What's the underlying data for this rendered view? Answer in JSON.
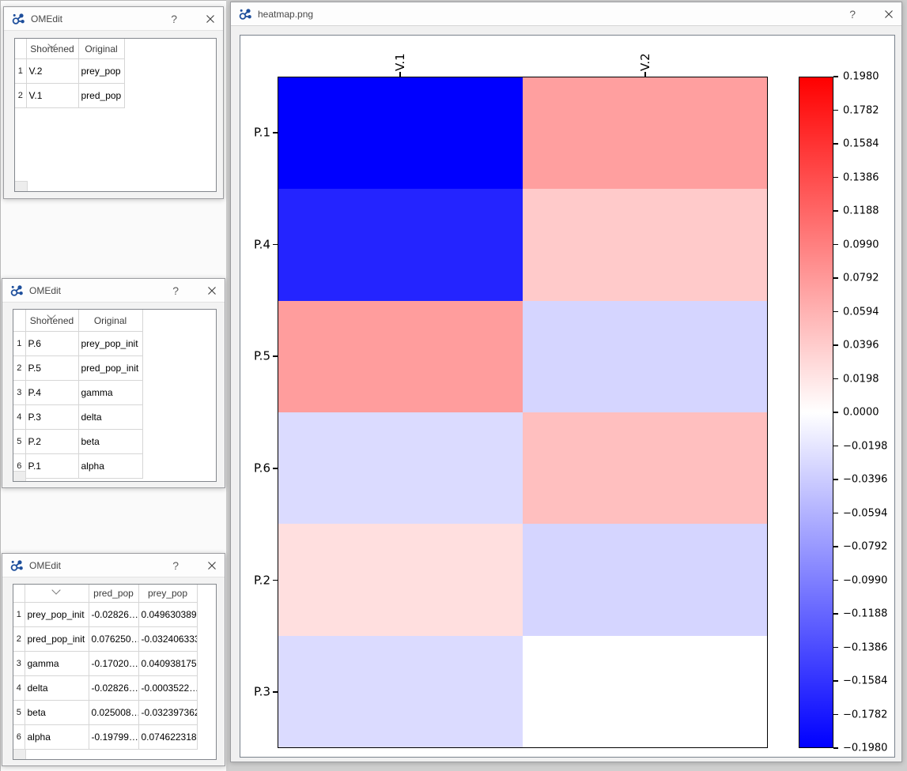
{
  "colors": {
    "heatmap_max_red": "#ff0000",
    "heatmap_min_blue": "#0000ff",
    "logo_blue": "#1e4f9c",
    "window_titlebar_bg": "#fdfdfd",
    "window_body_bg": "#f0f0f0"
  },
  "icons": {
    "omedit-logo-icon": "molecule-glyph",
    "help-icon": "?",
    "close-icon": "x-cross",
    "sort-indicator-icon": "chevron-down"
  },
  "windows": [
    {
      "title": "OMEdit",
      "help_label": "?",
      "table": {
        "columns": [
          "Shortened",
          "Original"
        ],
        "rows": [
          {
            "num": "1",
            "cells": [
              "V.2",
              "prey_pop"
            ]
          },
          {
            "num": "2",
            "cells": [
              "V.1",
              "pred_pop"
            ]
          }
        ]
      }
    },
    {
      "title": "OMEdit",
      "help_label": "?",
      "table": {
        "columns": [
          "Shortened",
          "Original"
        ],
        "rows": [
          {
            "num": "1",
            "cells": [
              "P.6",
              "prey_pop_init"
            ]
          },
          {
            "num": "2",
            "cells": [
              "P.5",
              "pred_pop_init"
            ]
          },
          {
            "num": "3",
            "cells": [
              "P.4",
              "gamma"
            ]
          },
          {
            "num": "4",
            "cells": [
              "P.3",
              "delta"
            ]
          },
          {
            "num": "5",
            "cells": [
              "P.2",
              "beta"
            ]
          },
          {
            "num": "6",
            "cells": [
              "P.1",
              "alpha"
            ]
          }
        ]
      }
    },
    {
      "title": "OMEdit",
      "help_label": "?",
      "table": {
        "columns": [
          "",
          "pred_pop",
          "prey_pop"
        ],
        "rows": [
          {
            "num": "1",
            "cells": [
              "prey_pop_init",
              "-0.02826…",
              "0.049630389"
            ]
          },
          {
            "num": "2",
            "cells": [
              "pred_pop_init",
              "0.076250…",
              "-0.032406333"
            ]
          },
          {
            "num": "3",
            "cells": [
              "gamma",
              "-0.17020…",
              "0.040938175"
            ]
          },
          {
            "num": "4",
            "cells": [
              "delta",
              "-0.02826…",
              "-0.0003522…"
            ]
          },
          {
            "num": "5",
            "cells": [
              "beta",
              "0.025008…",
              "-0.032397362"
            ]
          },
          {
            "num": "6",
            "cells": [
              "alpha",
              "-0.19799…",
              "0.074622318"
            ]
          }
        ]
      }
    }
  ],
  "heatmap_window": {
    "title": "heatmap.png",
    "help_label": "?"
  },
  "chart_data": {
    "type": "heatmap",
    "title": "",
    "columns": [
      "V.1",
      "V.2"
    ],
    "rows": [
      "P.1",
      "P.4",
      "P.5",
      "P.6",
      "P.2",
      "P.3"
    ],
    "values": [
      [
        -0.19799,
        0.074622318
      ],
      [
        -0.1702,
        0.040938175
      ],
      [
        0.07625,
        -0.032406333
      ],
      [
        -0.02826,
        0.049630389
      ],
      [
        0.025008,
        -0.032397362
      ],
      [
        -0.02826,
        -0.0003522
      ]
    ],
    "vmin": -0.198,
    "vmax": 0.198,
    "colormap": "bwr",
    "legend_position": "right-colorbar",
    "colorbar_tick_labels": [
      "0.1980",
      "0.1782",
      "0.1584",
      "0.1386",
      "0.1188",
      "0.0990",
      "0.0792",
      "0.0594",
      "0.0396",
      "0.0198",
      "0.0000",
      "−0.0198",
      "−0.0396",
      "−0.0594",
      "−0.0792",
      "−0.0990",
      "−0.1188",
      "−0.1386",
      "−0.1584",
      "−0.1782",
      "−0.1980"
    ]
  }
}
